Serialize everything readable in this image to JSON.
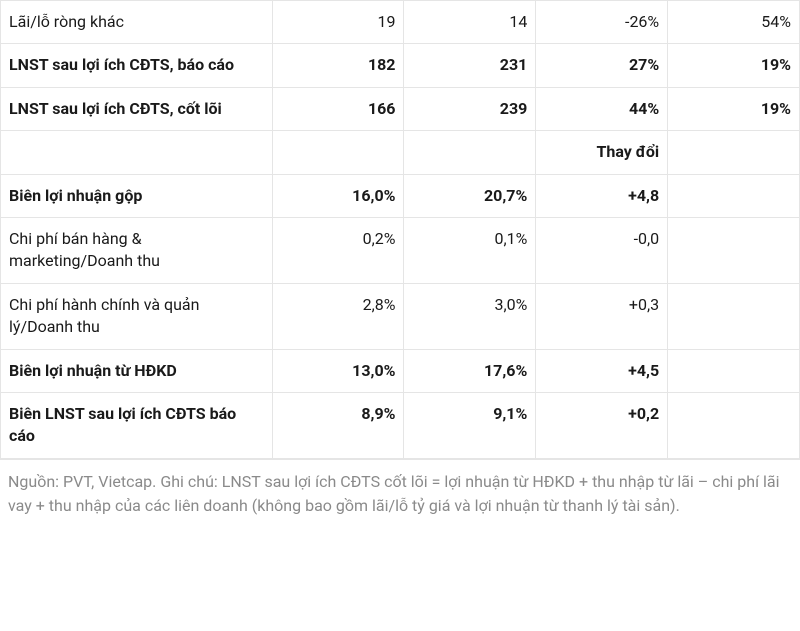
{
  "rows": [
    {
      "label": "Lãi/lỗ ròng khác",
      "c1": "19",
      "c2": "14",
      "c3": "-26%",
      "c4": "54%",
      "bold": false
    },
    {
      "label": "LNST sau lợi ích CĐTS, báo cáo",
      "c1": "182",
      "c2": "231",
      "c3": "27%",
      "c4": "19%",
      "bold": true
    },
    {
      "label": "LNST sau lợi ích CĐTS, cốt lõi",
      "c1": "166",
      "c2": "239",
      "c3": "44%",
      "c4": "19%",
      "bold": true
    }
  ],
  "change_header": "Thay đổi",
  "rows2": [
    {
      "label": "Biên lợi nhuận gộp",
      "c1": "16,0%",
      "c2": "20,7%",
      "c3": "+4,8",
      "c4": "",
      "bold": true
    },
    {
      "label": "Chi phí bán hàng & marketing/Doanh thu",
      "c1": "0,2%",
      "c2": "0,1%",
      "c3": "-0,0",
      "c4": "",
      "bold": false
    },
    {
      "label": "Chi phí hành chính và quản lý/Doanh thu",
      "c1": "2,8%",
      "c2": "3,0%",
      "c3": "+0,3",
      "c4": "",
      "bold": false
    },
    {
      "label": "Biên lợi nhuận từ HĐKD",
      "c1": "13,0%",
      "c2": "17,6%",
      "c3": "+4,5",
      "c4": "",
      "bold": true
    },
    {
      "label": "Biên LNST sau lợi ích CĐTS báo cáo",
      "c1": "8,9%",
      "c2": "9,1%",
      "c3": "+0,2",
      "c4": "",
      "bold": true
    }
  ],
  "footnote": "Nguồn: PVT, Vietcap. Ghi chú: LNST sau lợi ích CĐTS cốt lõi = lợi nhuận từ HĐKD + thu nhập từ lãi – chi phí lãi vay + thu nhập của các liên doanh (không bao gồm lãi/lỗ tỷ giá và lợi nhuận từ thanh lý tài sản).",
  "styling": {
    "font_family": "-apple-system, BlinkMacSystemFont, Segoe UI, Roboto",
    "text_color": "#1a1a1a",
    "border_color": "#e5e5e5",
    "footnote_color": "#8a8a8a",
    "background_color": "#ffffff",
    "cell_fontsize": 16,
    "col_widths": [
      "34%",
      "16.5%",
      "16.5%",
      "16.5%",
      "16.5%"
    ]
  }
}
